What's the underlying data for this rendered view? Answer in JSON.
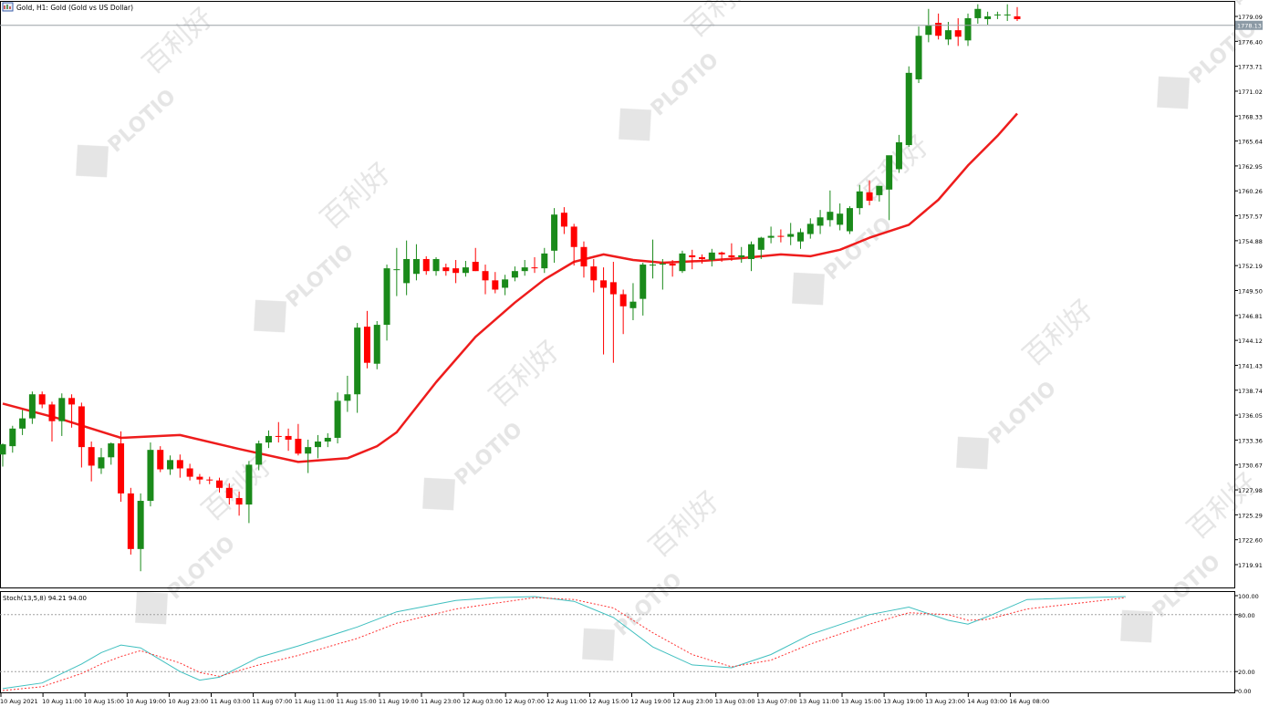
{
  "window": {
    "symbol_title": "Gold, H1:  Gold (Gold vs US Dollar)",
    "symbol_icon": "chart-window-icon"
  },
  "watermark": {
    "brand": "PLOTIO",
    "chinese": "百利好"
  },
  "colors": {
    "background": "#ffffff",
    "bull": "#1a8a1a",
    "bear": "#ff0000",
    "ma": "#ee1c1c",
    "stoch_main": "#3fbfbf",
    "stoch_signal": "#ff3333",
    "axis_text": "#000000",
    "bid_line": "#9aa0a6",
    "price_badge": "#8c9aa5"
  },
  "chart_data": [
    {
      "type": "candlestick",
      "symbol": "Gold",
      "timeframe": "H1",
      "current_price_label": "1778.13",
      "y_ticks": [
        "1779.09",
        "1776.40",
        "1773.71",
        "1771.02",
        "1768.33",
        "1765.64",
        "1762.95",
        "1760.26",
        "1757.57",
        "1754.88",
        "1752.19",
        "1749.50",
        "1746.81",
        "1744.12",
        "1741.43",
        "1738.74",
        "1736.05",
        "1733.36",
        "1730.67",
        "1727.98",
        "1725.29",
        "1722.60",
        "1719.91"
      ],
      "x_ticks": [
        "10 Aug 2021",
        "10 Aug 11:00",
        "10 Aug 15:00",
        "10 Aug 19:00",
        "10 Aug 23:00",
        "11 Aug 03:00",
        "11 Aug 07:00",
        "11 Aug 11:00",
        "11 Aug 15:00",
        "11 Aug 19:00",
        "11 Aug 23:00",
        "12 Aug 03:00",
        "12 Aug 07:00",
        "12 Aug 11:00",
        "12 Aug 15:00",
        "12 Aug 19:00",
        "12 Aug 23:00",
        "13 Aug 03:00",
        "13 Aug 07:00",
        "13 Aug 11:00",
        "13 Aug 15:00",
        "13 Aug 19:00",
        "13 Aug 23:00",
        "14 Aug 03:00",
        "16 Aug 08:00"
      ],
      "ylim": [
        1717.5,
        1780.4
      ],
      "ohlc": [
        [
          1731.8,
          1733.0,
          1730.5,
          1732.9
        ],
        [
          1732.7,
          1734.9,
          1732.0,
          1734.6
        ],
        [
          1734.6,
          1736.6,
          1733.9,
          1735.7
        ],
        [
          1735.7,
          1738.6,
          1735.1,
          1738.3
        ],
        [
          1738.3,
          1738.6,
          1736.8,
          1737.2
        ],
        [
          1737.2,
          1737.5,
          1733.2,
          1735.4
        ],
        [
          1735.4,
          1738.4,
          1733.8,
          1737.9
        ],
        [
          1737.9,
          1738.3,
          1734.7,
          1737.2
        ],
        [
          1737.0,
          1737.4,
          1730.4,
          1732.6
        ],
        [
          1732.6,
          1733.2,
          1728.9,
          1730.6
        ],
        [
          1730.3,
          1732.5,
          1729.7,
          1731.5
        ],
        [
          1731.5,
          1733.1,
          1730.7,
          1733.0
        ],
        [
          1733.0,
          1734.3,
          1726.7,
          1727.6
        ],
        [
          1727.6,
          1728.2,
          1721.0,
          1721.6
        ],
        [
          1721.6,
          1727.6,
          1719.2,
          1726.8
        ],
        [
          1726.8,
          1733.1,
          1726.2,
          1732.3
        ],
        [
          1732.3,
          1732.7,
          1729.9,
          1730.2
        ],
        [
          1730.2,
          1731.7,
          1729.6,
          1731.2
        ],
        [
          1731.2,
          1731.8,
          1729.3,
          1730.3
        ],
        [
          1730.3,
          1730.8,
          1729.0,
          1729.4
        ],
        [
          1729.4,
          1729.7,
          1728.6,
          1729.1
        ],
        [
          1729.1,
          1729.4,
          1728.6,
          1729.0
        ],
        [
          1729.0,
          1729.3,
          1727.7,
          1728.2
        ],
        [
          1728.2,
          1728.7,
          1726.4,
          1727.1
        ],
        [
          1727.1,
          1727.8,
          1725.2,
          1726.4
        ],
        [
          1726.4,
          1731.1,
          1724.4,
          1730.7
        ],
        [
          1730.7,
          1733.3,
          1730.1,
          1733.0
        ],
        [
          1733.1,
          1734.4,
          1732.5,
          1733.8
        ],
        [
          1733.8,
          1735.3,
          1733.1,
          1733.7
        ],
        [
          1733.8,
          1734.6,
          1732.2,
          1733.4
        ],
        [
          1733.5,
          1735.1,
          1731.7,
          1731.9
        ],
        [
          1731.9,
          1733.4,
          1729.8,
          1732.6
        ],
        [
          1732.6,
          1733.9,
          1731.4,
          1733.2
        ],
        [
          1733.2,
          1734.1,
          1732.6,
          1733.6
        ],
        [
          1733.6,
          1738.5,
          1733.0,
          1737.6
        ],
        [
          1737.6,
          1740.3,
          1736.4,
          1738.3
        ],
        [
          1738.3,
          1746.0,
          1736.3,
          1745.5
        ],
        [
          1745.6,
          1747.3,
          1741.1,
          1741.7
        ],
        [
          1741.6,
          1746.2,
          1741.0,
          1745.8
        ],
        [
          1745.8,
          1752.3,
          1744.1,
          1751.9
        ],
        [
          1751.8,
          1754.1,
          1748.9,
          1751.8
        ],
        [
          1750.3,
          1754.9,
          1749.0,
          1752.9
        ],
        [
          1751.3,
          1754.5,
          1750.6,
          1752.9
        ],
        [
          1752.9,
          1753.2,
          1751.2,
          1751.6
        ],
        [
          1751.6,
          1753.1,
          1751.1,
          1752.9
        ],
        [
          1752.0,
          1752.4,
          1751.1,
          1751.6
        ],
        [
          1751.9,
          1752.8,
          1750.3,
          1751.4
        ],
        [
          1751.4,
          1752.7,
          1751.0,
          1752.0
        ],
        [
          1752.6,
          1754.1,
          1751.6,
          1751.6
        ],
        [
          1751.6,
          1752.3,
          1749.1,
          1750.6
        ],
        [
          1750.6,
          1751.5,
          1749.2,
          1749.6
        ],
        [
          1749.8,
          1751.2,
          1749.0,
          1750.7
        ],
        [
          1750.9,
          1752.1,
          1750.5,
          1751.6
        ],
        [
          1751.6,
          1752.8,
          1751.1,
          1752.0
        ],
        [
          1752.0,
          1753.1,
          1751.4,
          1751.9
        ],
        [
          1751.9,
          1754.1,
          1751.4,
          1753.5
        ],
        [
          1753.8,
          1758.4,
          1752.5,
          1757.7
        ],
        [
          1757.9,
          1758.5,
          1755.6,
          1756.4
        ],
        [
          1756.4,
          1756.7,
          1752.2,
          1754.2
        ],
        [
          1754.2,
          1754.8,
          1750.9,
          1752.1
        ],
        [
          1752.1,
          1752.9,
          1749.3,
          1750.6
        ],
        [
          1750.6,
          1752.0,
          1742.6,
          1749.8
        ],
        [
          1750.4,
          1752.6,
          1741.7,
          1749.1
        ],
        [
          1749.1,
          1749.6,
          1744.8,
          1747.8
        ],
        [
          1747.6,
          1750.3,
          1746.3,
          1748.3
        ],
        [
          1748.6,
          1752.5,
          1746.8,
          1752.3
        ],
        [
          1752.3,
          1755.0,
          1750.8,
          1752.3
        ],
        [
          1752.4,
          1752.9,
          1749.6,
          1752.4
        ],
        [
          1752.4,
          1752.8,
          1751.0,
          1752.2
        ],
        [
          1751.6,
          1753.8,
          1751.4,
          1753.5
        ],
        [
          1753.3,
          1753.9,
          1751.8,
          1753.1
        ],
        [
          1753.1,
          1753.4,
          1752.4,
          1752.9
        ],
        [
          1752.8,
          1754.0,
          1752.1,
          1753.6
        ],
        [
          1753.6,
          1753.7,
          1752.6,
          1753.4
        ],
        [
          1753.3,
          1754.6,
          1752.7,
          1753.1
        ],
        [
          1753.1,
          1754.2,
          1752.5,
          1753.3
        ],
        [
          1752.9,
          1754.8,
          1751.6,
          1754.5
        ],
        [
          1753.9,
          1755.3,
          1752.9,
          1755.2
        ],
        [
          1755.2,
          1756.4,
          1754.6,
          1755.4
        ],
        [
          1755.4,
          1756.1,
          1754.7,
          1755.3
        ],
        [
          1755.3,
          1756.8,
          1754.4,
          1755.6
        ],
        [
          1754.8,
          1756.2,
          1754.0,
          1755.8
        ],
        [
          1755.6,
          1757.3,
          1755.1,
          1756.7
        ],
        [
          1756.5,
          1758.2,
          1755.6,
          1757.4
        ],
        [
          1757.1,
          1760.3,
          1756.4,
          1758.0
        ],
        [
          1756.6,
          1758.9,
          1756.0,
          1757.8
        ],
        [
          1755.9,
          1758.6,
          1755.6,
          1758.4
        ],
        [
          1758.4,
          1760.9,
          1757.7,
          1760.2
        ],
        [
          1760.1,
          1761.4,
          1758.7,
          1759.2
        ],
        [
          1759.8,
          1760.8,
          1759.1,
          1760.8
        ],
        [
          1760.4,
          1763.9,
          1757.1,
          1764.1
        ],
        [
          1762.6,
          1766.3,
          1762.2,
          1765.5
        ],
        [
          1765.2,
          1773.7,
          1765.0,
          1773.0
        ],
        [
          1772.3,
          1778.0,
          1771.9,
          1777.0
        ],
        [
          1777.1,
          1779.9,
          1776.3,
          1778.1
        ],
        [
          1778.4,
          1779.4,
          1776.6,
          1777.0
        ],
        [
          1776.6,
          1778.5,
          1776.0,
          1777.6
        ],
        [
          1777.6,
          1778.9,
          1775.9,
          1776.9
        ],
        [
          1776.5,
          1779.4,
          1775.9,
          1778.9
        ],
        [
          1778.9,
          1780.4,
          1778.3,
          1779.9
        ],
        [
          1778.8,
          1779.6,
          1778.2,
          1779.1
        ],
        [
          1779.2,
          1779.6,
          1778.8,
          1779.3
        ],
        [
          1779.3,
          1780.4,
          1778.6,
          1779.3
        ],
        [
          1779.1,
          1780.1,
          1778.6,
          1778.8
        ]
      ],
      "moving_average": [
        [
          0,
          1737.3
        ],
        [
          6,
          1735.6
        ],
        [
          12,
          1733.6
        ],
        [
          18,
          1733.9
        ],
        [
          24,
          1732.4
        ],
        [
          30,
          1731.0
        ],
        [
          35,
          1731.4
        ],
        [
          38,
          1732.7
        ],
        [
          40,
          1734.2
        ],
        [
          44,
          1739.6
        ],
        [
          48,
          1744.5
        ],
        [
          52,
          1748.2
        ],
        [
          55,
          1750.7
        ],
        [
          58,
          1752.6
        ],
        [
          61,
          1753.4
        ],
        [
          64,
          1752.8
        ],
        [
          67,
          1752.5
        ],
        [
          71,
          1752.7
        ],
        [
          75,
          1753.0
        ],
        [
          79,
          1753.4
        ],
        [
          82,
          1753.2
        ],
        [
          85,
          1753.9
        ],
        [
          88,
          1755.2
        ],
        [
          92,
          1756.6
        ],
        [
          95,
          1759.3
        ],
        [
          98,
          1763.0
        ],
        [
          101,
          1766.2
        ],
        [
          103,
          1768.6
        ]
      ]
    },
    {
      "type": "line",
      "indicator": "Stoch(13,5,8)",
      "label": "Stoch(13,5,8) 94.21 94.00",
      "main_value": 94.21,
      "signal_value": 94.0,
      "ylim": [
        0,
        100
      ],
      "y_ticks": [
        "100.00",
        "80.00",
        "20.00",
        "0.00"
      ],
      "levels": [
        80,
        20
      ],
      "series": [
        {
          "values": [
            [
              0,
              2
            ],
            [
              4,
              8
            ],
            [
              8,
              28
            ],
            [
              10,
              40
            ],
            [
              12,
              48
            ],
            [
              14,
              45
            ],
            [
              18,
              20
            ],
            [
              20,
              11
            ],
            [
              22,
              14
            ],
            [
              26,
              35
            ],
            [
              30,
              47
            ],
            [
              36,
              67
            ],
            [
              40,
              83
            ],
            [
              46,
              95
            ],
            [
              50,
              98
            ],
            [
              54,
              99
            ],
            [
              58,
              94
            ],
            [
              62,
              77
            ],
            [
              66,
              46
            ],
            [
              70,
              27
            ],
            [
              74,
              24
            ],
            [
              78,
              38
            ],
            [
              82,
              59
            ],
            [
              88,
              80
            ],
            [
              92,
              88
            ],
            [
              96,
              74
            ],
            [
              98,
              70
            ],
            [
              100,
              78
            ],
            [
              104,
              96
            ],
            [
              110,
              98
            ],
            [
              114,
              99
            ]
          ]
        },
        {
          "values": [
            [
              0,
              0
            ],
            [
              4,
              4
            ],
            [
              8,
              18
            ],
            [
              10,
              28
            ],
            [
              12,
              36
            ],
            [
              14,
              42
            ],
            [
              18,
              29
            ],
            [
              20,
              19
            ],
            [
              22,
              15
            ],
            [
              26,
              27
            ],
            [
              30,
              37
            ],
            [
              36,
              55
            ],
            [
              40,
              71
            ],
            [
              46,
              86
            ],
            [
              50,
              92
            ],
            [
              54,
              98
            ],
            [
              58,
              96
            ],
            [
              62,
              87
            ],
            [
              66,
              61
            ],
            [
              70,
              38
            ],
            [
              74,
              25
            ],
            [
              78,
              32
            ],
            [
              82,
              49
            ],
            [
              88,
              70
            ],
            [
              92,
              82
            ],
            [
              96,
              80
            ],
            [
              98,
              74
            ],
            [
              100,
              75
            ],
            [
              104,
              86
            ],
            [
              110,
              93
            ],
            [
              114,
              98
            ]
          ]
        }
      ]
    }
  ]
}
